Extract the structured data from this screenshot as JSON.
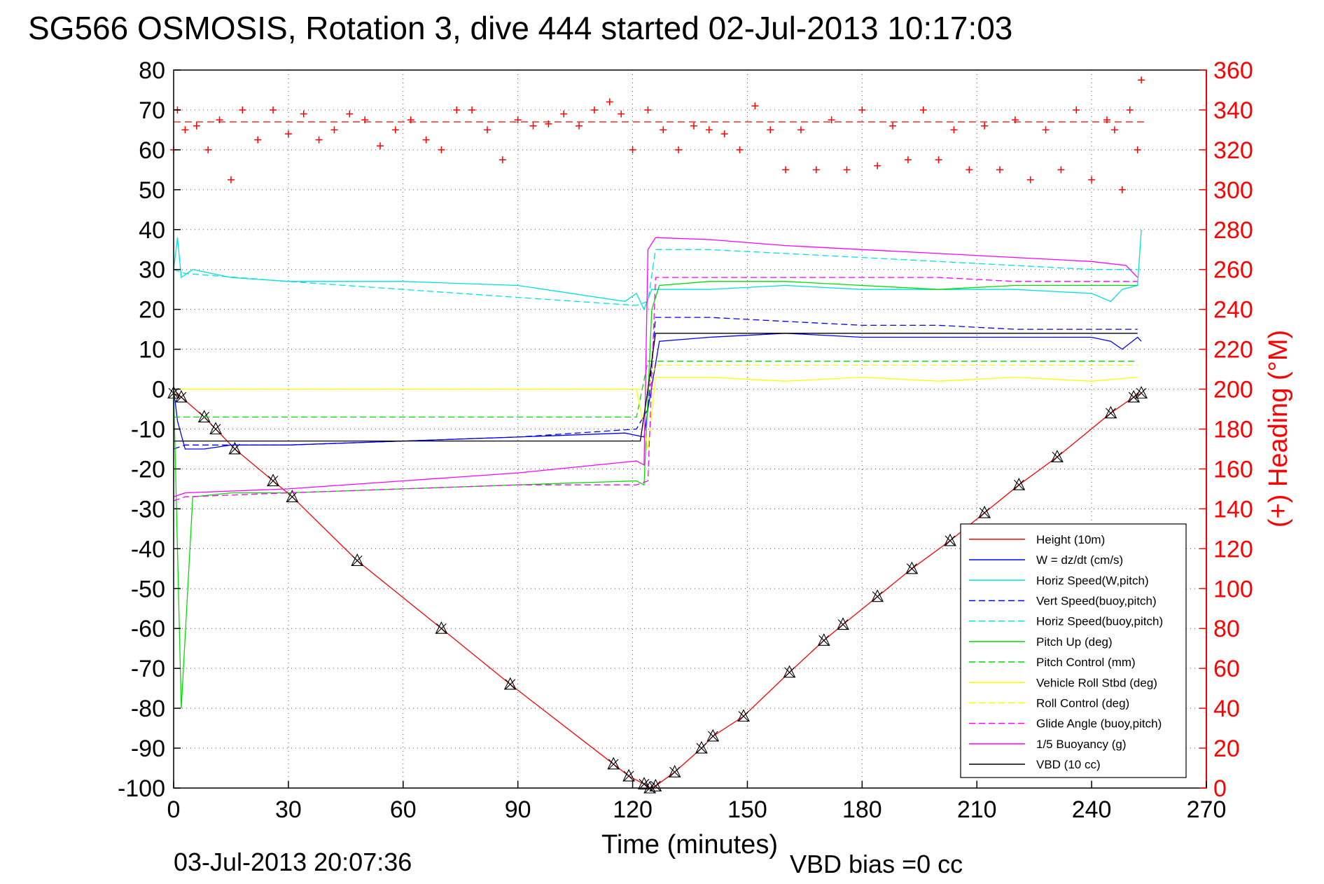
{
  "chart_data": {
    "type": "line",
    "title": "SG566 OSMOSIS, Rotation 3, dive 444 started 02-Jul-2013 10:17:03",
    "xlabel": "Time (minutes)",
    "ylabel": "",
    "y2label": "(+) Heading (°M)",
    "xlim": [
      0,
      270
    ],
    "ylim": [
      -100,
      80
    ],
    "y2lim": [
      0,
      360
    ],
    "xticks": [
      0,
      30,
      60,
      90,
      120,
      150,
      180,
      210,
      240,
      270
    ],
    "yticks": [
      80,
      70,
      60,
      50,
      40,
      30,
      20,
      10,
      0,
      -10,
      -20,
      -30,
      -40,
      -50,
      -60,
      -70,
      -80,
      -90,
      -100
    ],
    "y2ticks": [
      360,
      340,
      320,
      300,
      280,
      260,
      240,
      220,
      200,
      180,
      160,
      140,
      120,
      100,
      80,
      60,
      40,
      20,
      0
    ],
    "grid": true,
    "legend_position": "lower-right",
    "footer_date": "03-Jul-2013 20:07:36",
    "footer_bias": "VBD bias =0 cc",
    "heading_reference": 334,
    "series": [
      {
        "name": "Height (10m)",
        "color": "#ff0000",
        "style": "solid",
        "x": [
          0,
          2,
          8,
          11,
          16,
          26,
          31,
          48,
          70,
          88,
          115,
          119,
          123,
          124.5,
          126,
          131,
          138,
          141,
          149,
          161,
          170,
          175,
          184,
          193,
          203,
          212,
          221,
          231,
          245,
          251,
          253
        ],
        "y": [
          -1,
          -2,
          -7,
          -10,
          -15,
          -23,
          -27,
          -43,
          -60,
          -74,
          -94,
          -97,
          -99,
          -100,
          -99.5,
          -96,
          -90,
          -87,
          -82,
          -71,
          -63,
          -59,
          -52,
          -45,
          -38,
          -31,
          -24,
          -17,
          -6,
          -2,
          -1
        ]
      },
      {
        "name": "W = dz/dt (cm/s)",
        "color": "#0000ff",
        "style": "solid",
        "x": [
          0,
          1,
          3,
          8,
          15,
          30,
          60,
          90,
          118,
          123,
          124,
          127,
          140,
          160,
          180,
          200,
          220,
          240,
          245,
          248,
          252,
          253
        ],
        "y": [
          0,
          -8,
          -15,
          -15,
          -14,
          -14,
          -13,
          -12,
          -11,
          -12,
          -5,
          12,
          13,
          14,
          13,
          13,
          13,
          13,
          12,
          10,
          13,
          12
        ]
      },
      {
        "name": "Horiz Speed(W,pitch)",
        "color": "#00e0e0",
        "style": "solid",
        "x": [
          0,
          1,
          2,
          5,
          15,
          30,
          60,
          90,
          118,
          121,
          123,
          125,
          127,
          140,
          160,
          180,
          200,
          220,
          240,
          245,
          248,
          252,
          253
        ],
        "y": [
          30,
          38,
          28,
          30,
          28,
          27,
          27,
          26,
          22,
          24,
          20,
          25,
          25,
          25,
          26,
          25,
          25,
          25,
          24,
          22,
          25,
          26,
          40
        ]
      },
      {
        "name": "Vert Speed(buoy,pitch)",
        "color": "#0000ff",
        "style": "dashed",
        "x": [
          0,
          3,
          30,
          60,
          90,
          121,
          124,
          126,
          140,
          160,
          180,
          200,
          220,
          240,
          252
        ],
        "y": [
          -15,
          -14,
          -14,
          -13,
          -12,
          -10,
          -5,
          18,
          18,
          17,
          16,
          16,
          15,
          15,
          15
        ]
      },
      {
        "name": "Horiz Speed(buoy,pitch)",
        "color": "#00e0e0",
        "style": "dashed",
        "x": [
          0,
          3,
          30,
          60,
          90,
          121,
          124,
          126,
          140,
          160,
          180,
          200,
          220,
          240,
          252
        ],
        "y": [
          30,
          29,
          27,
          25,
          23,
          21,
          22,
          35,
          35,
          34,
          33,
          32,
          31,
          30,
          30
        ]
      },
      {
        "name": "Pitch Up (deg)",
        "color": "#00dd00",
        "style": "solid",
        "x": [
          0,
          2,
          5,
          15,
          30,
          60,
          90,
          121,
          123,
          125,
          127,
          140,
          160,
          180,
          200,
          220,
          240,
          252
        ],
        "y": [
          0,
          -80,
          -27,
          -26,
          -26,
          -25,
          -24,
          -23,
          -24,
          20,
          26,
          27,
          27,
          26,
          25,
          26,
          26,
          26
        ]
      },
      {
        "name": "Pitch Control (mm)",
        "color": "#00dd00",
        "style": "dashed",
        "x": [
          0,
          3,
          121,
          124,
          126,
          252
        ],
        "y": [
          -7,
          -7,
          -7,
          7,
          7,
          7
        ]
      },
      {
        "name": "Vehicle Roll Stbd (deg)",
        "color": "#ffff00",
        "style": "solid",
        "x": [
          0,
          3,
          115,
          116,
          121,
          124,
          126,
          140,
          160,
          180,
          200,
          220,
          240,
          252
        ],
        "y": [
          0,
          0,
          0,
          0,
          0,
          -15,
          3,
          3,
          2,
          3,
          2,
          3,
          2,
          3
        ]
      },
      {
        "name": "Roll Control (deg)",
        "color": "#ffff00",
        "style": "dashed",
        "x": [
          0,
          3,
          121,
          124,
          126,
          252
        ],
        "y": [
          0,
          0,
          0,
          0,
          6,
          6
        ]
      },
      {
        "name": "Glide Angle (buoy,pitch)",
        "color": "#ff00ff",
        "style": "dashed",
        "x": [
          0,
          3,
          30,
          60,
          90,
          121,
          124,
          126,
          140,
          160,
          180,
          200,
          220,
          240,
          252
        ],
        "y": [
          -28,
          -27,
          -26,
          -25,
          -24,
          -24,
          -23,
          28,
          28,
          28,
          28,
          28,
          27,
          27,
          27
        ]
      },
      {
        "name": "1/5 Buoyancy (g)",
        "color": "#ff00ff",
        "style": "solid",
        "x": [
          0,
          3,
          30,
          60,
          90,
          121,
          123,
          124,
          126,
          140,
          160,
          180,
          200,
          220,
          240,
          249,
          252
        ],
        "y": [
          -27,
          -26,
          -25,
          -23,
          -21,
          -18,
          -19,
          35,
          38,
          37.5,
          36,
          35,
          34,
          33,
          32,
          31,
          28
        ]
      },
      {
        "name": "VBD (10 cc)",
        "color": "#000000",
        "style": "solid",
        "x": [
          0,
          3,
          122,
          124,
          126,
          140,
          160,
          180,
          200,
          220,
          240,
          252
        ],
        "y": [
          -13,
          -13,
          -13,
          0,
          14,
          14,
          14,
          14,
          14,
          14,
          14,
          14
        ]
      },
      {
        "name": "(+) Heading",
        "color": "#ff0000",
        "style": "markers",
        "axis": "right",
        "x": [
          0,
          1,
          3,
          6,
          9,
          12,
          15,
          18,
          22,
          26,
          30,
          34,
          38,
          42,
          46,
          50,
          54,
          58,
          62,
          66,
          70,
          74,
          78,
          82,
          86,
          90,
          94,
          98,
          102,
          106,
          110,
          114,
          117,
          120,
          124,
          128,
          132,
          136,
          140,
          144,
          148,
          152,
          156,
          160,
          164,
          168,
          172,
          176,
          180,
          184,
          188,
          192,
          196,
          200,
          204,
          208,
          212,
          216,
          220,
          224,
          228,
          232,
          236,
          240,
          244,
          246,
          248,
          250,
          252,
          253
        ],
        "y": [
          320,
          340,
          330,
          332,
          320,
          335,
          305,
          340,
          325,
          340,
          328,
          338,
          325,
          330,
          338,
          335,
          322,
          330,
          335,
          325,
          320,
          340,
          340,
          330,
          315,
          335,
          332,
          333,
          338,
          332,
          340,
          344,
          338,
          320,
          340,
          330,
          320,
          332,
          330,
          328,
          320,
          342,
          330,
          310,
          330,
          310,
          335,
          310,
          340,
          312,
          332,
          315,
          340,
          315,
          330,
          310,
          332,
          310,
          335,
          305,
          330,
          310,
          340,
          305,
          335,
          330,
          300,
          340,
          320,
          355
        ]
      }
    ]
  }
}
